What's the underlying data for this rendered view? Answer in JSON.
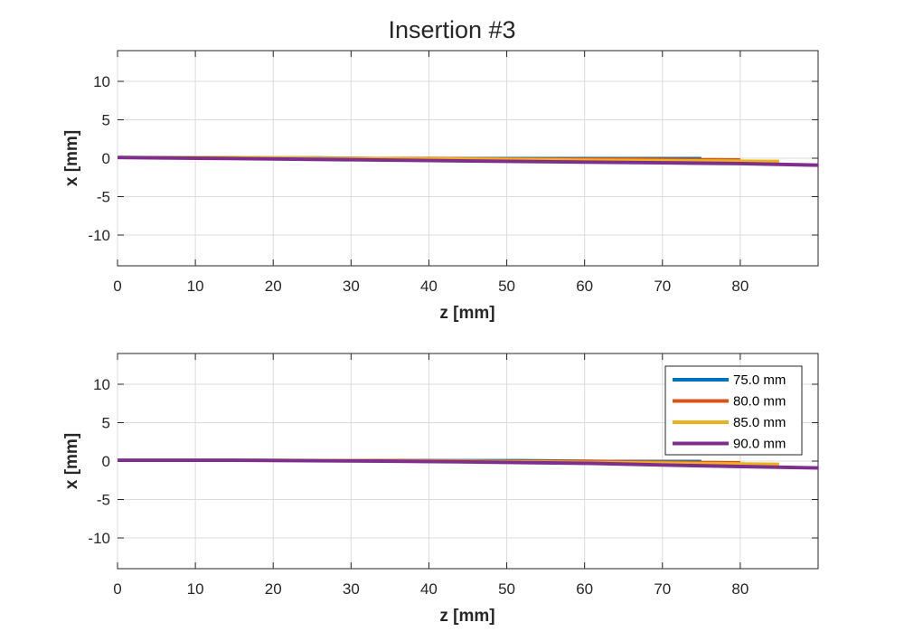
{
  "chart_data": {
    "title": "Insertion #3",
    "legend_placement": "top-right (bottom plot)",
    "series_colors": [
      "#0072BD",
      "#D95319",
      "#EDB120",
      "#7E2F8E"
    ],
    "subplots": [
      {
        "type": "line",
        "xlabel": "z [mm]",
        "ylabel": "x [mm]",
        "xlim": [
          0,
          90
        ],
        "ylim": [
          -14,
          14
        ],
        "xticks": [
          0,
          10,
          20,
          30,
          40,
          50,
          60,
          70,
          80
        ],
        "yticks": [
          -10,
          -5,
          0,
          5,
          10
        ],
        "grid": true,
        "series": [
          {
            "name": "75.0 mm",
            "color": "#0072BD",
            "x": [
              0,
              13,
              26,
              33,
              45,
              55,
              65,
              75
            ],
            "y": [
              0.1,
              0.1,
              0.1,
              0.0,
              0.0,
              0.0,
              0.0,
              0.0
            ]
          },
          {
            "name": "80.0 mm",
            "color": "#D95319",
            "x": [
              0,
              13,
              26,
              40,
              53,
              66,
              80
            ],
            "y": [
              0.1,
              0.1,
              0.0,
              0.0,
              -0.1,
              -0.1,
              -0.2
            ]
          },
          {
            "name": "85.0 mm",
            "color": "#EDB120",
            "x": [
              0,
              14,
              28,
              42,
              56,
              70,
              85
            ],
            "y": [
              0.1,
              0.1,
              0.0,
              -0.1,
              -0.2,
              -0.3,
              -0.4
            ]
          },
          {
            "name": "90.0 mm",
            "color": "#7E2F8E",
            "x": [
              0,
              10,
              20,
              30,
              40,
              50,
              60,
              70,
              80,
              90
            ],
            "y": [
              0.1,
              0.0,
              -0.1,
              -0.2,
              -0.3,
              -0.4,
              -0.5,
              -0.6,
              -0.7,
              -0.9
            ]
          }
        ]
      },
      {
        "type": "line",
        "xlabel": "z [mm]",
        "ylabel": "x [mm]",
        "xlim": [
          0,
          90
        ],
        "ylim": [
          -14,
          14
        ],
        "xticks": [
          0,
          10,
          20,
          30,
          40,
          50,
          60,
          70,
          80
        ],
        "yticks": [
          -10,
          -5,
          0,
          5,
          10
        ],
        "grid": true,
        "legend": [
          "75.0 mm",
          "80.0 mm",
          "85.0 mm",
          "90.0 mm"
        ],
        "series": [
          {
            "name": "75.0 mm",
            "color": "#0072BD",
            "x": [
              0,
              17,
              34,
              52,
              63,
              75
            ],
            "y": [
              0.1,
              0.1,
              0.1,
              0.1,
              0.0,
              0.0
            ]
          },
          {
            "name": "80.0 mm",
            "color": "#D95319",
            "x": [
              0,
              18,
              36,
              48,
              60,
              70,
              80
            ],
            "y": [
              0.1,
              0.1,
              0.1,
              0.0,
              0.0,
              -0.1,
              -0.2
            ]
          },
          {
            "name": "85.0 mm",
            "color": "#EDB120",
            "x": [
              0,
              21,
              42,
              54,
              64,
              74,
              85
            ],
            "y": [
              0.1,
              0.1,
              0.0,
              -0.1,
              -0.2,
              -0.3,
              -0.4
            ]
          },
          {
            "name": "90.0 mm",
            "color": "#7E2F8E",
            "x": [
              0,
              15,
              34,
              45,
              52,
              61,
              70,
              80,
              90
            ],
            "y": [
              0.1,
              0.1,
              0.0,
              -0.1,
              -0.2,
              -0.3,
              -0.5,
              -0.7,
              -0.9
            ]
          }
        ]
      }
    ]
  }
}
